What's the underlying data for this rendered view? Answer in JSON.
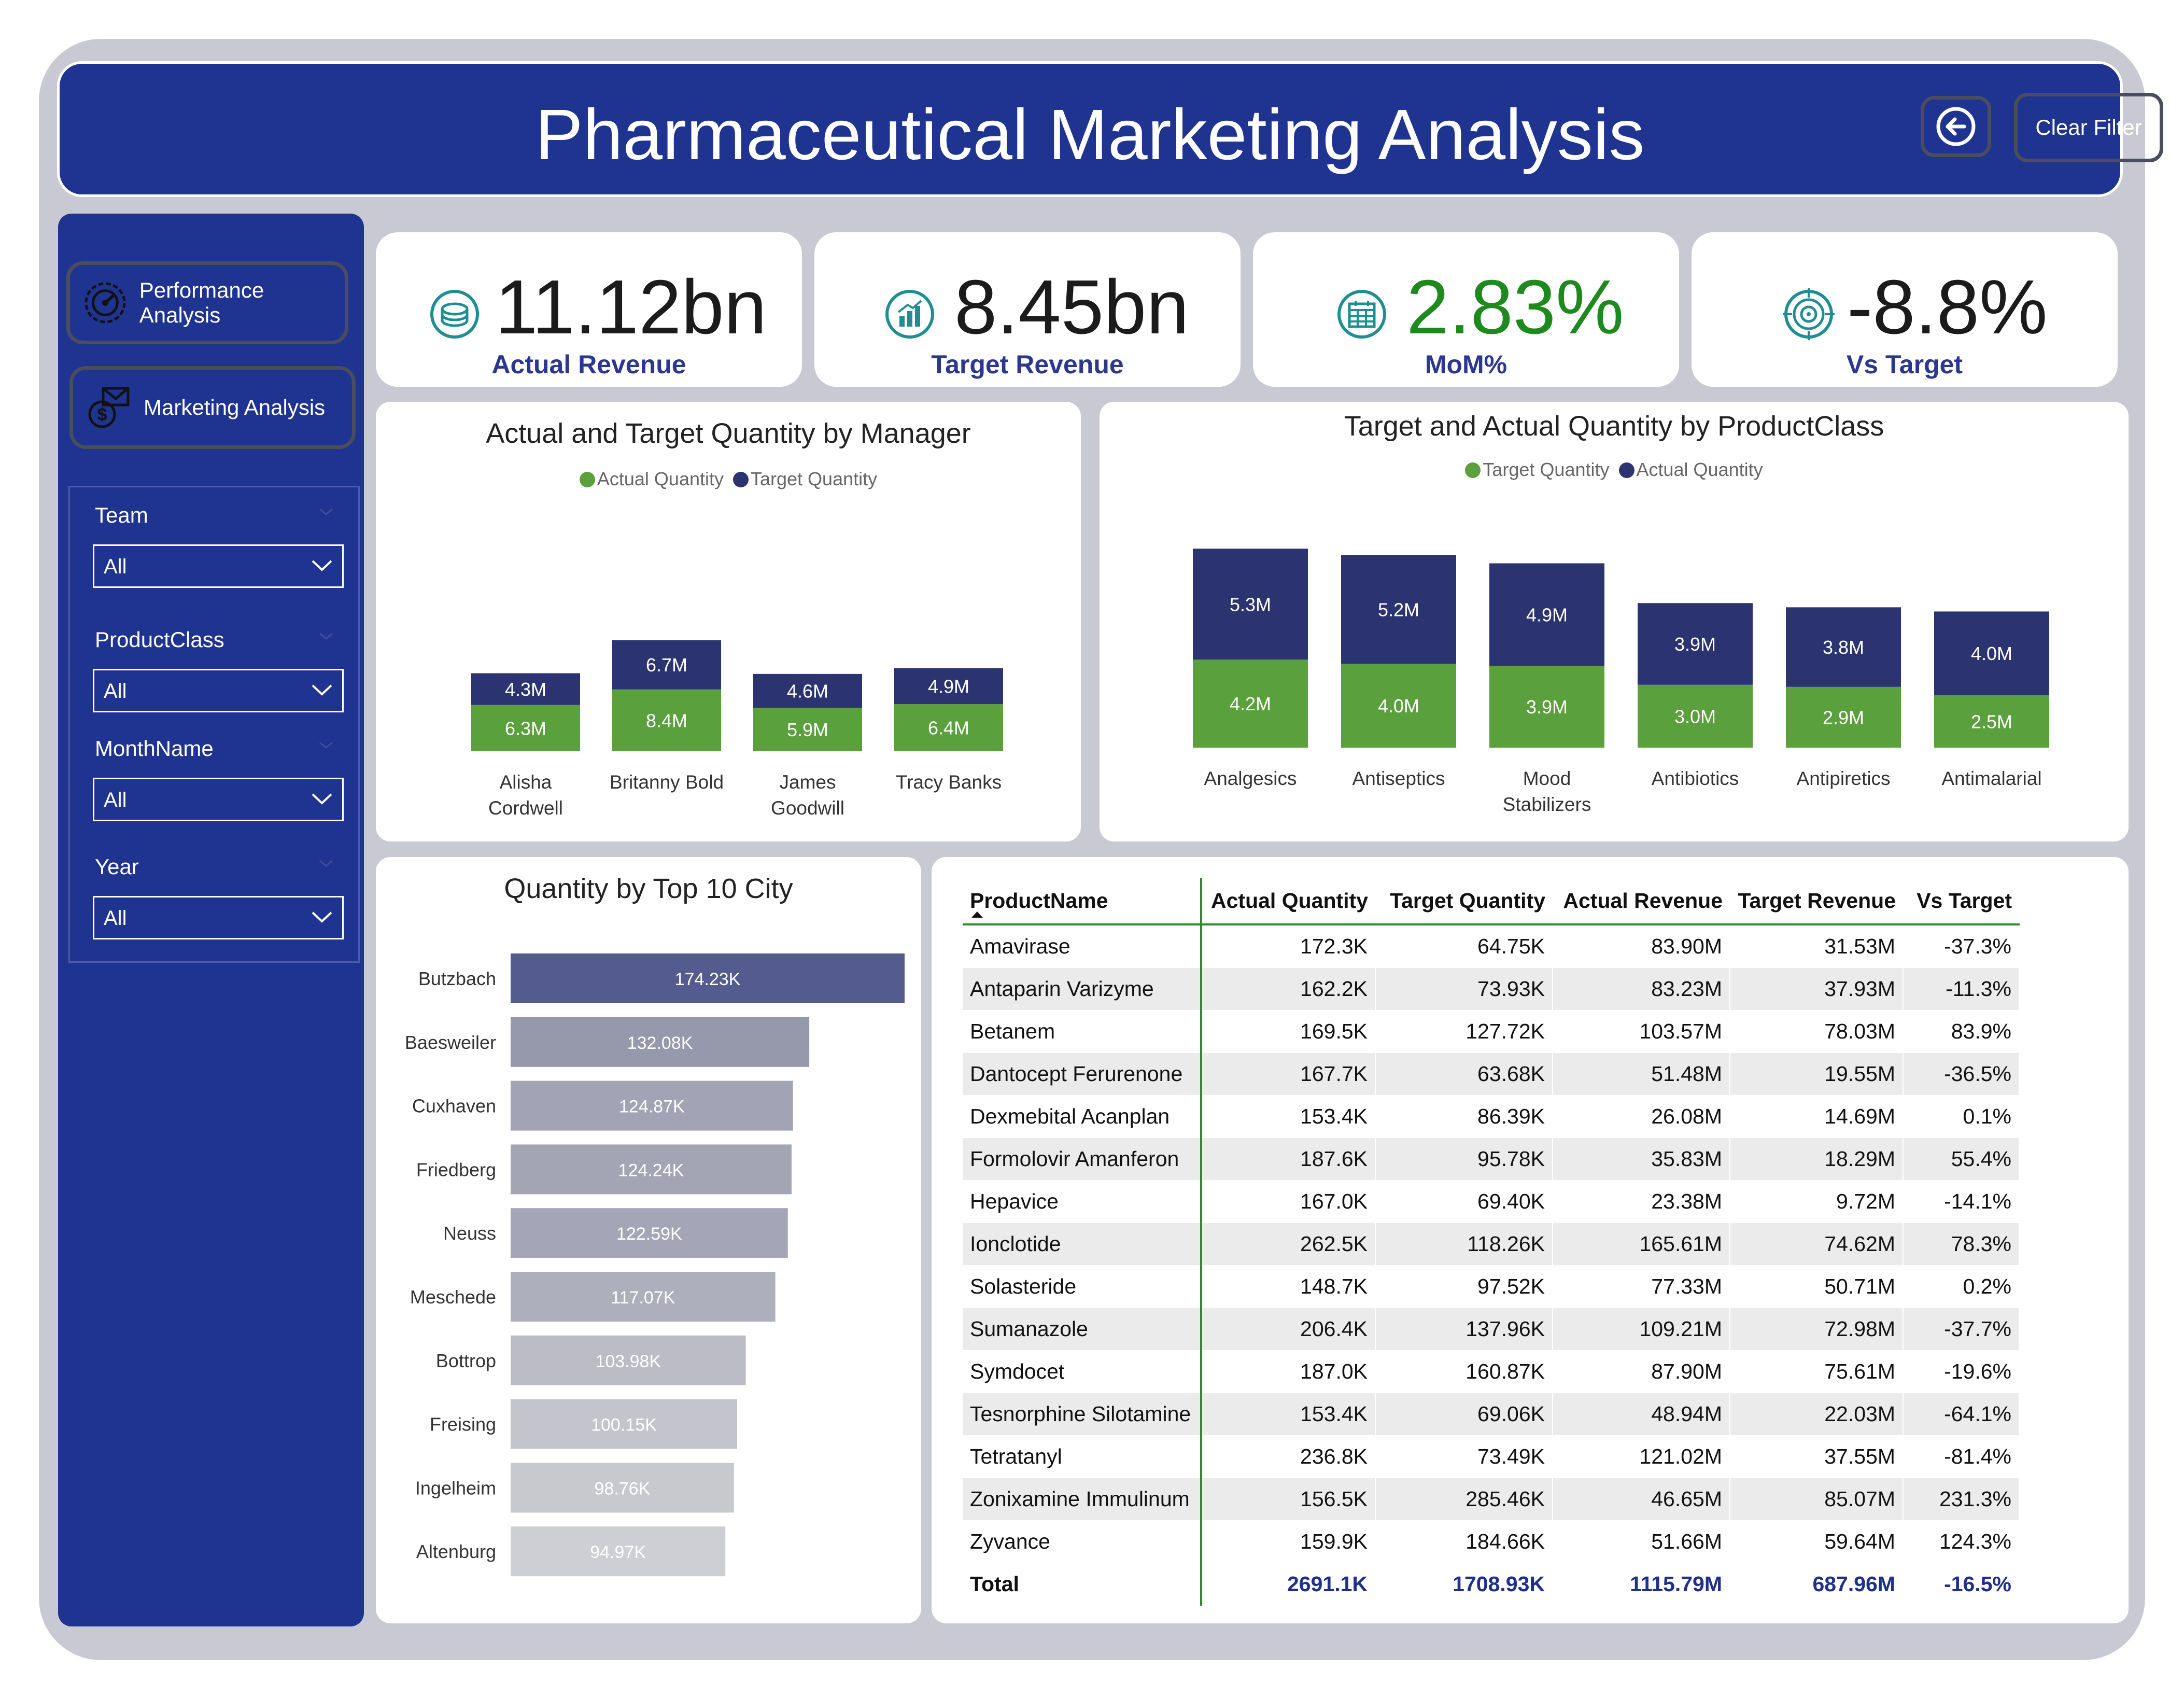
{
  "header": {
    "title": "Pharmaceutical Marketing Analysis",
    "back_icon": "back-arrow-icon",
    "clear_filter_label": "Clear Filter"
  },
  "sidebar": {
    "nav": [
      {
        "label": "Performance Analysis",
        "icon": "gauge-icon"
      },
      {
        "label": "Marketing Analysis",
        "icon": "money-mail-icon"
      }
    ],
    "filters": [
      {
        "label": "Team",
        "value": "All"
      },
      {
        "label": "ProductClass",
        "value": "All"
      },
      {
        "label": "MonthName",
        "value": "All"
      },
      {
        "label": "Year",
        "value": "All"
      }
    ]
  },
  "kpis": [
    {
      "value": "11.12bn",
      "label": "Actual Revenue",
      "icon": "coins-icon",
      "color": "#1b1b1b"
    },
    {
      "value": "8.45bn",
      "label": "Target Revenue",
      "icon": "bar-chart-icon",
      "color": "#1b1b1b"
    },
    {
      "value": "2.83%",
      "label": "MoM%",
      "icon": "calendar-icon",
      "color": "#1e8a1e"
    },
    {
      "value": "-8.8%",
      "label": "Vs Target",
      "icon": "target-icon",
      "color": "#1b1b1b"
    }
  ],
  "colors": {
    "actual": "#5aa03c",
    "target": "#2b3470",
    "header": "#1f3491",
    "accent_green": "#2e8b2e"
  },
  "chart_data": [
    {
      "type": "bar",
      "title": "Actual and Target Quantity by Manager",
      "legend": [
        {
          "name": "Actual Quantity",
          "color": "#5aa03c"
        },
        {
          "name": "Target Quantity",
          "color": "#2b3470"
        }
      ],
      "categories": [
        "Alisha Cordwell",
        "Britanny Bold",
        "James Goodwill",
        "Tracy Banks"
      ],
      "category_lines": [
        [
          "Alisha",
          "Cordwell"
        ],
        [
          "Britanny Bold"
        ],
        [
          "James",
          "Goodwill"
        ],
        [
          "Tracy Banks"
        ]
      ],
      "stacked": true,
      "series": [
        {
          "name": "Actual Quantity",
          "values": [
            6.3,
            8.4,
            5.9,
            6.4
          ],
          "labels": [
            "6.3M",
            "8.4M",
            "5.9M",
            "6.4M"
          ]
        },
        {
          "name": "Target Quantity",
          "values": [
            4.3,
            6.7,
            4.6,
            4.9
          ],
          "labels": [
            "4.3M",
            "6.7M",
            "4.6M",
            "4.9M"
          ]
        }
      ]
    },
    {
      "type": "bar",
      "title": "Target and Actual Quantity by ProductClass",
      "legend": [
        {
          "name": "Target Quantity",
          "color": "#5aa03c"
        },
        {
          "name": "Actual Quantity",
          "color": "#2b3470"
        }
      ],
      "categories": [
        "Analgesics",
        "Antiseptics",
        "Mood Stabilizers",
        "Antibiotics",
        "Antipiretics",
        "Antimalarial"
      ],
      "category_lines": [
        [
          "Analgesics"
        ],
        [
          "Antiseptics"
        ],
        [
          "Mood",
          "Stabilizers"
        ],
        [
          "Antibiotics"
        ],
        [
          "Antipiretics"
        ],
        [
          "Antimalarial"
        ]
      ],
      "stacked": true,
      "series": [
        {
          "name": "Target Quantity",
          "values": [
            4.2,
            4.0,
            3.9,
            3.0,
            2.9,
            2.5
          ],
          "labels": [
            "4.2M",
            "4.0M",
            "3.9M",
            "3.0M",
            "2.9M",
            "2.5M"
          ]
        },
        {
          "name": "Actual Quantity",
          "values": [
            5.3,
            5.2,
            4.9,
            3.9,
            3.8,
            4.0
          ],
          "labels": [
            "5.3M",
            "5.2M",
            "4.9M",
            "3.9M",
            "3.8M",
            "4.0M"
          ]
        }
      ]
    },
    {
      "type": "bar",
      "orientation": "horizontal",
      "title": "Quantity by Top 10 City",
      "categories": [
        "Butzbach",
        "Baesweiler",
        "Cuxhaven",
        "Friedberg",
        "Neuss",
        "Meschede",
        "Bottrop",
        "Freising",
        "Ingelheim",
        "Altenburg"
      ],
      "values": [
        174.23,
        132.08,
        124.87,
        124.24,
        122.59,
        117.07,
        103.98,
        100.15,
        98.76,
        94.97
      ],
      "labels": [
        "174.23K",
        "132.08K",
        "124.87K",
        "124.24K",
        "122.59K",
        "117.07K",
        "103.98K",
        "100.15K",
        "98.76K",
        "94.97K"
      ]
    },
    {
      "type": "table",
      "columns": [
        "ProductName",
        "Actual Quantity",
        "Target Quantity",
        "Actual Revenue",
        "Target Revenue",
        "Vs Target"
      ],
      "rows": [
        [
          "Amavirase",
          "172.3K",
          "64.75K",
          "83.90M",
          "31.53M",
          "-37.3%"
        ],
        [
          "Antaparin Varizyme",
          "162.2K",
          "73.93K",
          "83.23M",
          "37.93M",
          "-11.3%"
        ],
        [
          "Betanem",
          "169.5K",
          "127.72K",
          "103.57M",
          "78.03M",
          "83.9%"
        ],
        [
          "Dantocept Ferurenone",
          "167.7K",
          "63.68K",
          "51.48M",
          "19.55M",
          "-36.5%"
        ],
        [
          "Dexmebital Acanplan",
          "153.4K",
          "86.39K",
          "26.08M",
          "14.69M",
          "0.1%"
        ],
        [
          "Formolovir Amanferon",
          "187.6K",
          "95.78K",
          "35.83M",
          "18.29M",
          "55.4%"
        ],
        [
          "Hepavice",
          "167.0K",
          "69.40K",
          "23.38M",
          "9.72M",
          "-14.1%"
        ],
        [
          "Ionclotide",
          "262.5K",
          "118.26K",
          "165.61M",
          "74.62M",
          "78.3%"
        ],
        [
          "Solasteride",
          "148.7K",
          "97.52K",
          "77.33M",
          "50.71M",
          "0.2%"
        ],
        [
          "Sumanazole",
          "206.4K",
          "137.96K",
          "109.21M",
          "72.98M",
          "-37.7%"
        ],
        [
          "Symdocet",
          "187.0K",
          "160.87K",
          "87.90M",
          "75.61M",
          "-19.6%"
        ],
        [
          "Tesnorphine Silotamine",
          "153.4K",
          "69.06K",
          "48.94M",
          "22.03M",
          "-64.1%"
        ],
        [
          "Tetratanyl",
          "236.8K",
          "73.49K",
          "121.02M",
          "37.55M",
          "-81.4%"
        ],
        [
          "Zonixamine Immulinum",
          "156.5K",
          "285.46K",
          "46.65M",
          "85.07M",
          "231.3%"
        ],
        [
          "Zyvance",
          "159.9K",
          "184.66K",
          "51.66M",
          "59.64M",
          "124.3%"
        ]
      ],
      "total": [
        "Total",
        "2691.1K",
        "1708.93K",
        "1115.79M",
        "687.96M",
        "-16.5%"
      ]
    }
  ]
}
